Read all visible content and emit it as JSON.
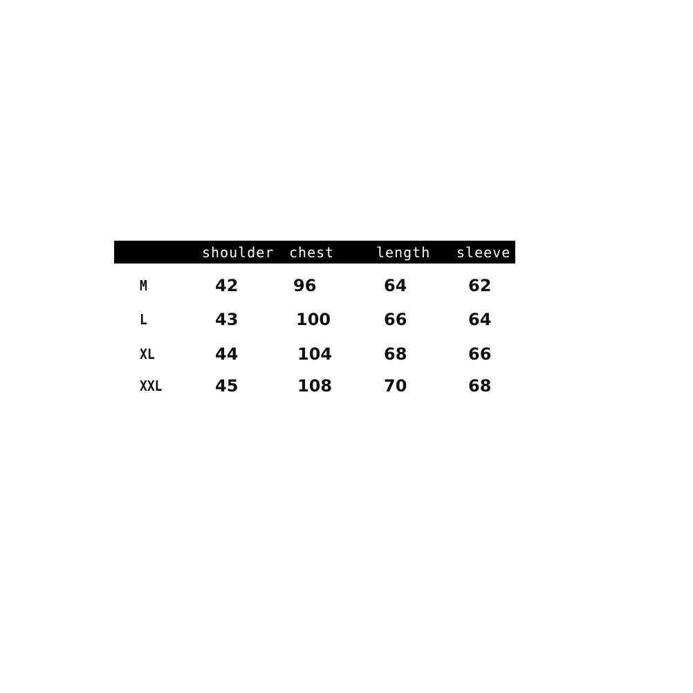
{
  "table": {
    "columns": [
      "",
      "shoulder",
      "chest",
      "length",
      "sleeve"
    ],
    "rows": [
      {
        "size": "M",
        "shoulder": "42",
        "chest": "96",
        "length": "64",
        "sleeve": "62"
      },
      {
        "size": "L",
        "shoulder": "43",
        "chest": "100",
        "length": "66",
        "sleeve": "64"
      },
      {
        "size": "XL",
        "shoulder": "44",
        "chest": "104",
        "length": "68",
        "sleeve": "66"
      },
      {
        "size": "XXL",
        "shoulder": "45",
        "chest": "108",
        "length": "70",
        "sleeve": "68"
      }
    ],
    "header_bg": "#000000",
    "header_text_color": "#ffffff"
  }
}
